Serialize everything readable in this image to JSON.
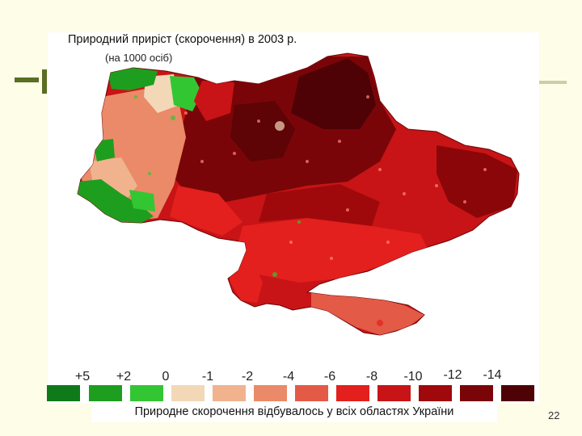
{
  "slide": {
    "page_number": "22",
    "caption": "Природне скорочення відбувалось у всіх областях України"
  },
  "map": {
    "title": "Природний приріст (скорочення) в 2003 р.",
    "subtitle": "(на 1000 осіб)"
  },
  "legend": {
    "labels": [
      "+5",
      "+2",
      "0",
      "-1",
      "-2",
      "-4",
      "-6",
      "-8",
      "-10",
      "-12",
      "-14"
    ],
    "colors": [
      "#0e7a1a",
      "#1e9e1e",
      "#33c633",
      "#f3d8b8",
      "#f0b38e",
      "#ea8a68",
      "#e35a46",
      "#e3201e",
      "#c81416",
      "#a0090c",
      "#7a0508",
      "#4e0205"
    ]
  },
  "colors": {
    "dark_red": "#7a0508",
    "mid_red": "#c81416",
    "bright_red": "#e3201e",
    "salmon": "#ea8a68",
    "green": "#1e9e1e",
    "light_green": "#33c633"
  }
}
